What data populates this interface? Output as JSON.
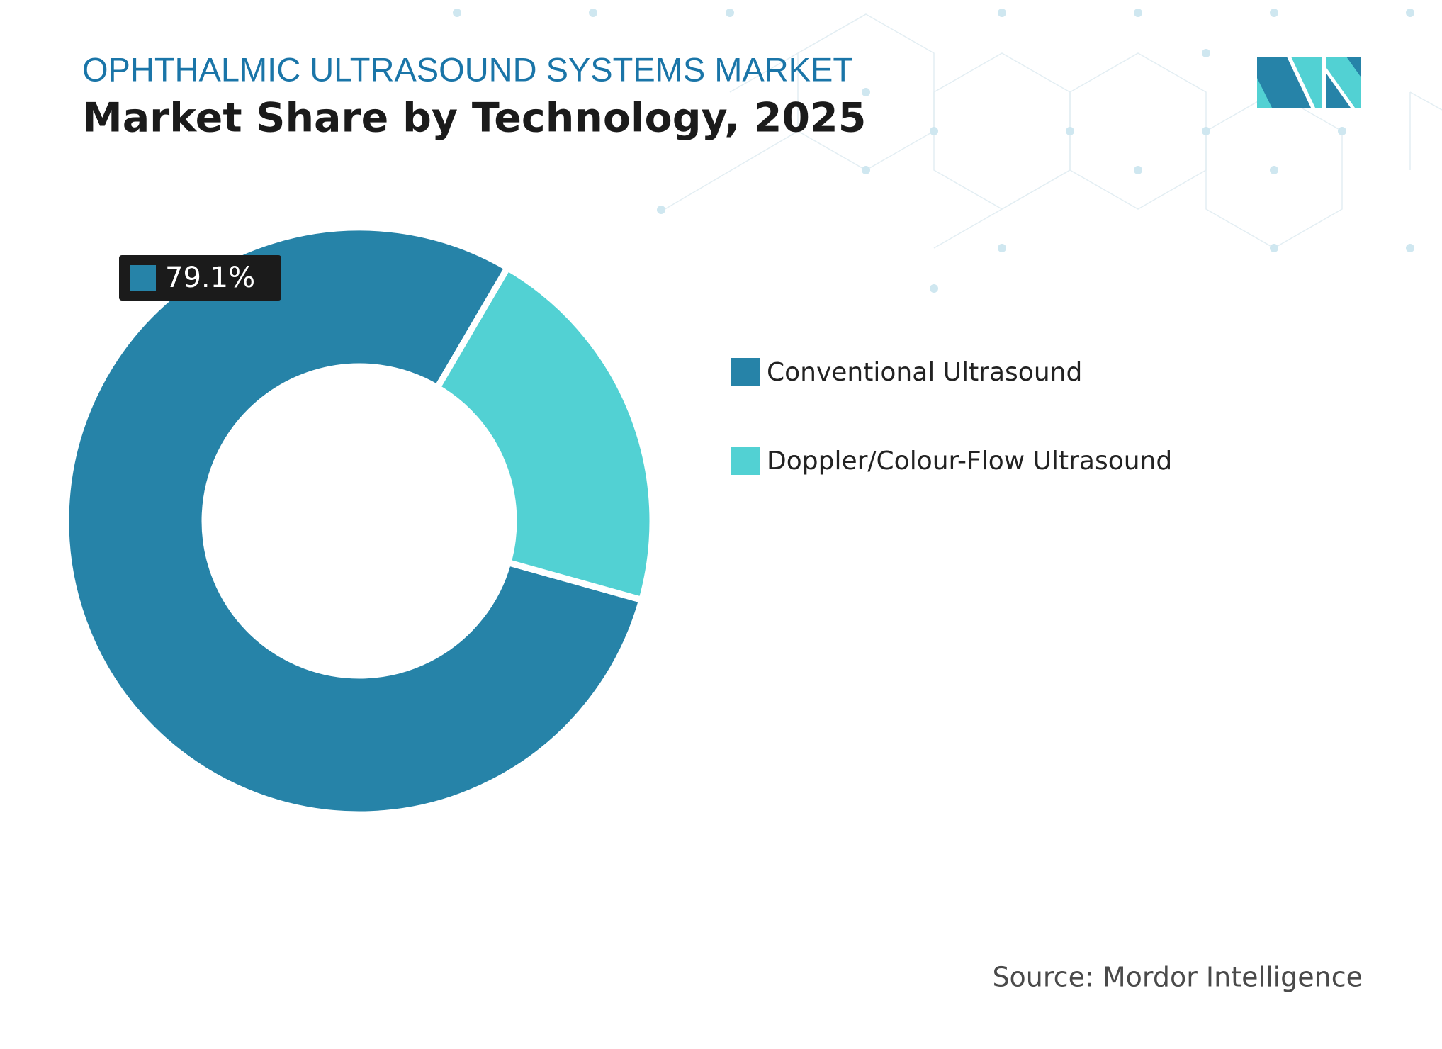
{
  "chart_data": {
    "type": "pie",
    "title": "OPHTHALMIC ULTRASOUND SYSTEMS MARKET",
    "subtitle": "Market Share by Technology, 2025",
    "categories": [
      "Conventional Ultrasound",
      "Doppler/Colour-Flow Ultrasound"
    ],
    "values": [
      79.1,
      20.9
    ],
    "value_labels": [
      "79.1%",
      null
    ],
    "colors": [
      "#2683a8",
      "#52d1d3"
    ],
    "source": "Source: Mordor Intelligence"
  }
}
